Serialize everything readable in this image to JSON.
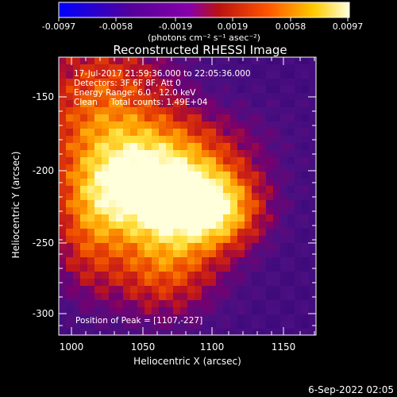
{
  "colorbar": {
    "tick_labels": [
      "-0.0097",
      "-0.0058",
      "-0.0019",
      "0.0019",
      "0.0058",
      "0.0097"
    ],
    "unit_label": "(photons cm⁻² s⁻¹ asec⁻²)",
    "colors": [
      "#0000ff",
      "#3300cc",
      "#660066",
      "#9900aa",
      "#cc1a1a",
      "#ff6600",
      "#ffcc00",
      "#ffffcc"
    ]
  },
  "image": {
    "title": "Reconstructed RHESSI Image",
    "annotations": [
      "17-Jul-2017 21:59:36.000 to 22:05:36.000",
      "Detectors: 3F 6F 8F, Att 0",
      "Energy Range: 6.0 - 12.0 keV",
      "Clean     Total counts: 1.49E+04"
    ],
    "peak_label": "Position of Peak = [1107,-227]"
  },
  "axes": {
    "xlabel": "Heliocentric X (arcsec)",
    "ylabel": "Heliocentric Y (arcsec)",
    "x_ticks": [
      "1000",
      "1050",
      "1100",
      "1150"
    ],
    "y_ticks": [
      "-150",
      "-200",
      "-250",
      "-300"
    ],
    "xlim": [
      985,
      1185
    ],
    "ylim": [
      -318,
      -125
    ]
  },
  "footer": {
    "timestamp": "6-Sep-2022 02:05"
  }
}
